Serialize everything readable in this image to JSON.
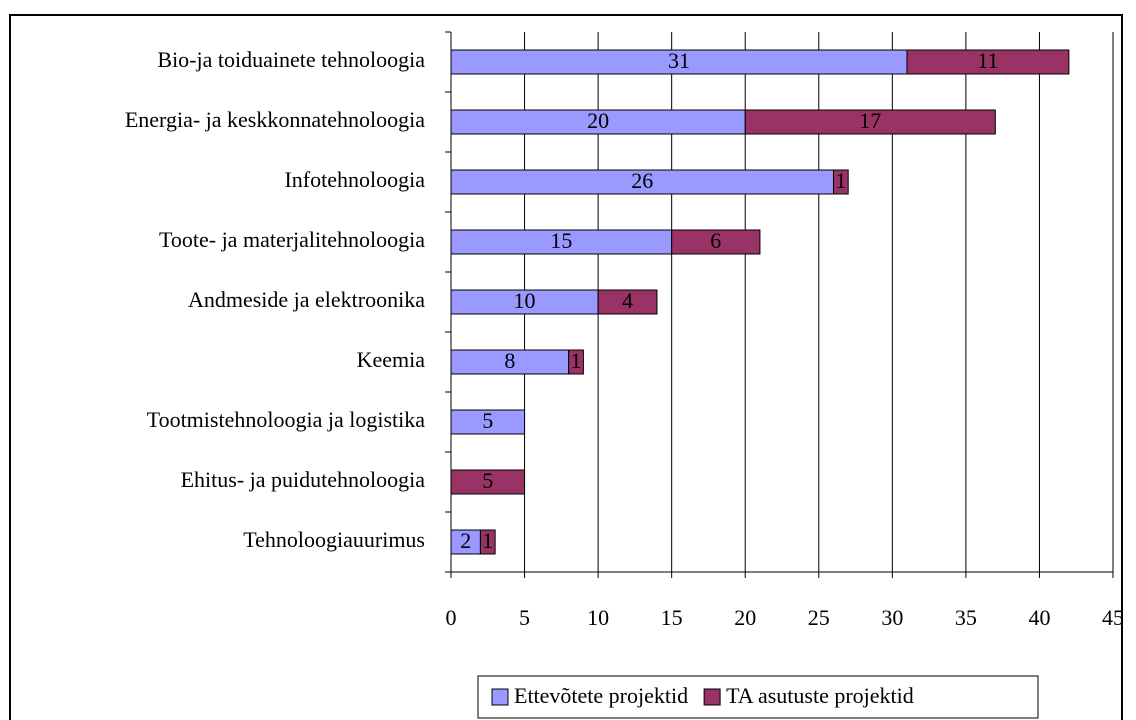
{
  "chart_data": {
    "type": "bar",
    "orientation": "horizontal",
    "stacked": true,
    "categories": [
      "Bio-ja toiduainete tehnoloogia",
      "Energia- ja keskkonnatehnoloogia",
      "Infotehnoloogia",
      "Toote- ja materjalitehnoloogia",
      "Andmeside ja elektroonika",
      "Keemia",
      "Tootmistehnoloogia ja logistika",
      "Ehitus- ja puidutehnoloogia",
      "Tehnoloogiauurimus"
    ],
    "series": [
      {
        "name": "Ettevõtete projektid",
        "color": "#9999ff",
        "label_color": "#000000",
        "values": [
          31,
          20,
          26,
          15,
          10,
          8,
          5,
          null,
          2
        ]
      },
      {
        "name": "TA asutuste projektid",
        "color": "#993366",
        "label_color": "#ffffff",
        "values": [
          11,
          17,
          1,
          6,
          4,
          1,
          null,
          5,
          1
        ]
      }
    ],
    "xlim": [
      0,
      45
    ],
    "xticks": [
      0,
      5,
      10,
      15,
      20,
      25,
      30,
      35,
      40,
      45
    ],
    "grid": true,
    "legend": "bottom"
  }
}
